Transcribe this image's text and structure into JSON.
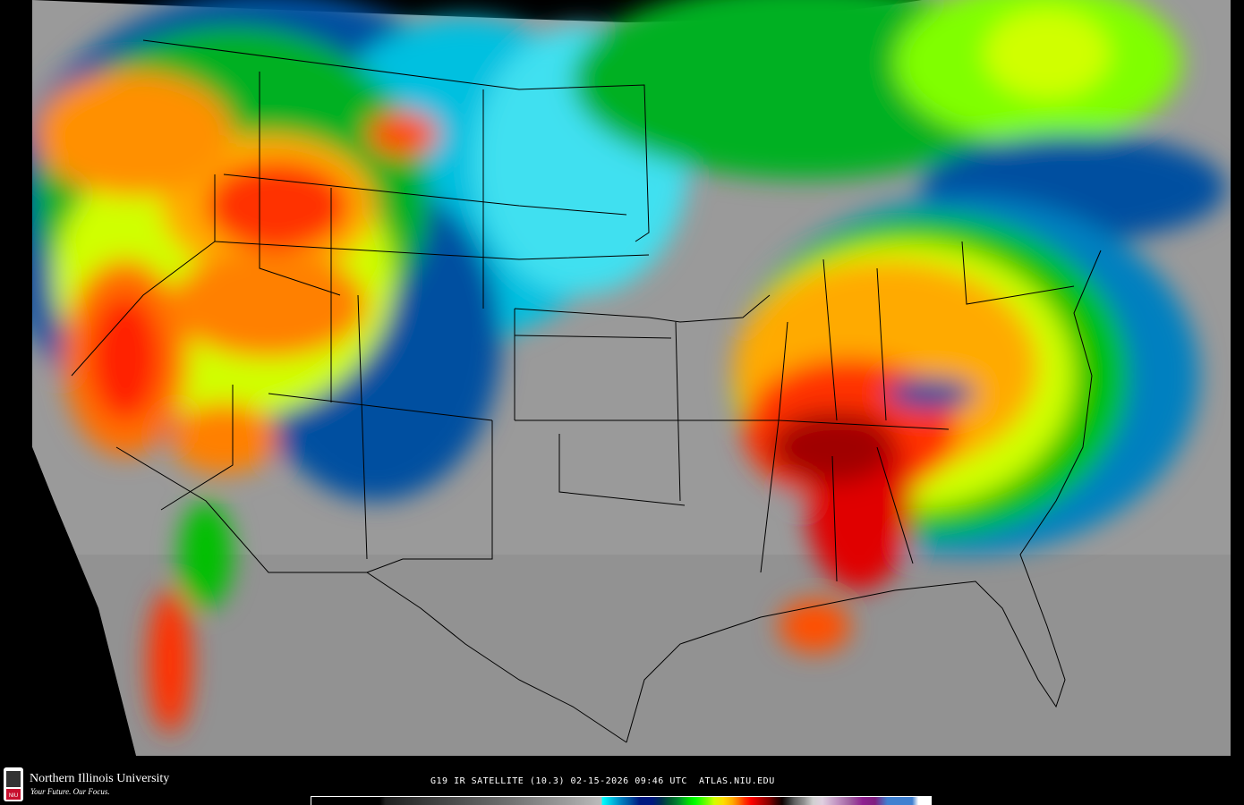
{
  "product": {
    "caption": "G19 IR SATELLITE (10.3) 02-15-2026 09:46 UTC  ATLAS.NIU.EDU"
  },
  "branding": {
    "name": "Northern Illinois University",
    "tagline": "Your Future. Our Focus.",
    "logo_text": "NIU",
    "brand_color": "#c8102e"
  },
  "map": {
    "region": "Continental United States",
    "land_color": "#9a9a9a",
    "border_color": "#000000"
  },
  "colorbar": {
    "stops": [
      "#000000",
      "#707070",
      "#bbbbbb",
      "#00ffff",
      "#0080c0",
      "#001880",
      "#006030",
      "#00ff00",
      "#d0ff00",
      "#ffaa00",
      "#ff0000",
      "#800000",
      "#303030",
      "#d0d0d0",
      "#c090c0",
      "#802080",
      "#4080d0",
      "#ffffff"
    ]
  }
}
